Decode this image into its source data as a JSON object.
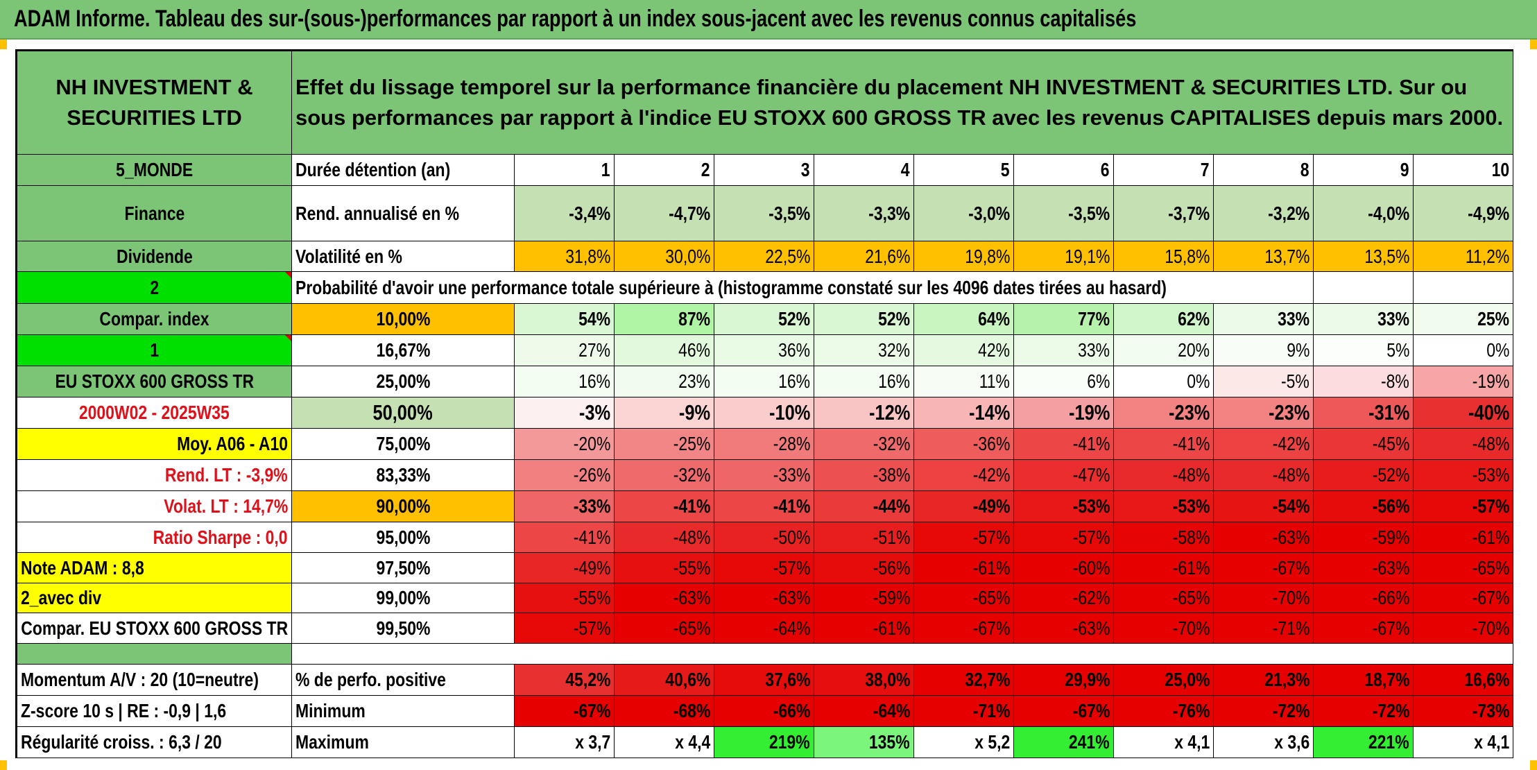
{
  "banner_title": "ADAM Informe. Tableau des sur-(sous-)performances par rapport à un index sous-jacent avec les revenus connus capitalisés",
  "header": {
    "company": "NH INVESTMENT & SECURITIES LTD",
    "description": "Effet du lissage temporel sur la performance financière du placement NH INVESTMENT & SECURITIES LTD. Sur ou sous performances par rapport à l'indice EU STOXX 600 GROSS TR avec les revenus CAPITALISES depuis mars 2000."
  },
  "left_labels": {
    "zone": "5_MONDE",
    "sector": "Finance",
    "type": "Dividende",
    "value_2": "2",
    "compar_index": "Compar. index",
    "value_1": "1",
    "index_name": "EU STOXX 600 GROSS TR",
    "period": "2000W02 - 2025W35",
    "moy": "Moy. A06 - A10",
    "rend_lt": "Rend. LT :   -3,9%",
    "volat_lt": "Volat. LT :   14,7%",
    "ratio_sharpe": "Ratio Sharpe :    0,0",
    "note_adam": "Note ADAM : 8,8",
    "avec_div": "2_avec div",
    "compar_full": "Compar. EU STOXX 600 GROSS TR",
    "momentum": "Momentum A/V : 20 (10=neutre)",
    "zscore": "Z-score 10 s | RE : -0,9 | 1,6",
    "regularite": "Régularité croiss. : 6,3 / 20"
  },
  "row_labels": {
    "duree": "Durée détention (an)",
    "rend": "Rend. annualisé en %",
    "volat": "Volatilité en %",
    "proba": "Probabilité d'avoir une performance totale supérieure à (histogramme constaté sur les 4096 dates tirées au hasard)",
    "pct_pos": "% de perfo. positive",
    "minimum": "Minimum",
    "maximum": "Maximum"
  },
  "years": [
    "1",
    "2",
    "3",
    "4",
    "5",
    "6",
    "7",
    "8",
    "9",
    "10"
  ],
  "rend": [
    "-3,4%",
    "-4,7%",
    "-3,5%",
    "-3,3%",
    "-3,0%",
    "-3,5%",
    "-3,7%",
    "-3,2%",
    "-4,0%",
    "-4,9%"
  ],
  "volat": [
    "31,8%",
    "30,0%",
    "22,5%",
    "21,6%",
    "19,8%",
    "19,1%",
    "15,8%",
    "13,7%",
    "13,5%",
    "11,2%"
  ],
  "percentiles": [
    {
      "label": "10,00%",
      "values": [
        "54%",
        "87%",
        "52%",
        "52%",
        "64%",
        "77%",
        "62%",
        "33%",
        "33%",
        "25%"
      ],
      "colors": [
        "#d9f7d3",
        "#b0f5a6",
        "#d9f7d3",
        "#d9f7d3",
        "#c8f5c0",
        "#b7f2ad",
        "#d2f6cb",
        "#ecfbe9",
        "#ecfbe9",
        "#f1fcef"
      ]
    },
    {
      "label": "16,67%",
      "values": [
        "27%",
        "46%",
        "36%",
        "32%",
        "42%",
        "33%",
        "20%",
        "9%",
        "5%",
        "0%"
      ],
      "colors": [
        "#eefbeb",
        "#e2f9dd",
        "#e9faE5",
        "#ebfbe8",
        "#e4f9e0",
        "#ebfbe8",
        "#f2fcf0",
        "#f8fef7",
        "#fbfefa",
        "#ffffff"
      ]
    },
    {
      "label": "25,00%",
      "values": [
        "16%",
        "23%",
        "16%",
        "16%",
        "11%",
        "6%",
        "0%",
        "-5%",
        "-8%",
        "-19%"
      ],
      "colors": [
        "#f4fdf2",
        "#f0fcee",
        "#f4fdf2",
        "#f4fdf2",
        "#f7fdf5",
        "#fafef9",
        "#ffffff",
        "#fde8e8",
        "#fcdcdc",
        "#f7a6a6"
      ]
    },
    {
      "label": "50,00%",
      "values": [
        "-3%",
        "-9%",
        "-10%",
        "-12%",
        "-14%",
        "-19%",
        "-23%",
        "-23%",
        "-31%",
        "-40%"
      ],
      "colors": [
        "#fdf0f0",
        "#fbd4d4",
        "#facdcd",
        "#f9c4c4",
        "#f7b5b5",
        "#f5a0a0",
        "#f38383",
        "#f38383",
        "#ee5858",
        "#e93030"
      ]
    },
    {
      "label": "75,00%",
      "values": [
        "-20%",
        "-25%",
        "-28%",
        "-32%",
        "-36%",
        "-41%",
        "-41%",
        "-42%",
        "-45%",
        "-48%"
      ],
      "colors": [
        "#f49999",
        "#f28585",
        "#f17b7b",
        "#ef6a6a",
        "#ee5c5c",
        "#ec4646",
        "#ec4646",
        "#ec4242",
        "#ea3636",
        "#e92a2a"
      ]
    },
    {
      "label": "83,33%",
      "values": [
        "-26%",
        "-32%",
        "-33%",
        "-38%",
        "-42%",
        "-47%",
        "-48%",
        "-48%",
        "-52%",
        "-53%"
      ],
      "colors": [
        "#f28080",
        "#ef6a6a",
        "#ef6666",
        "#ed5050",
        "#ec4242",
        "#ea2e2e",
        "#e92a2a",
        "#e92a2a",
        "#e81c1c",
        "#e81818"
      ]
    },
    {
      "label": "90,00%",
      "values": [
        "-33%",
        "-41%",
        "-41%",
        "-44%",
        "-49%",
        "-53%",
        "-53%",
        "-54%",
        "-56%",
        "-57%"
      ],
      "colors": [
        "#ef6666",
        "#ec4646",
        "#ec4646",
        "#eb3a3a",
        "#e92626",
        "#e81818",
        "#e81818",
        "#e71414",
        "#e70c0c",
        "#e70808"
      ]
    },
    {
      "label": "95,00%",
      "values": [
        "-41%",
        "-48%",
        "-50%",
        "-51%",
        "-57%",
        "-57%",
        "-58%",
        "-63%",
        "-59%",
        "-61%"
      ],
      "colors": [
        "#ec4646",
        "#e92a2a",
        "#e82222",
        "#e81e1e",
        "#e70808",
        "#e70808",
        "#e60404",
        "#e60000",
        "#e60000",
        "#e60000"
      ]
    },
    {
      "label": "97,50%",
      "values": [
        "-49%",
        "-55%",
        "-57%",
        "-56%",
        "-61%",
        "-60%",
        "-61%",
        "-67%",
        "-63%",
        "-65%"
      ],
      "colors": [
        "#e92626",
        "#e71010",
        "#e70808",
        "#e70c0c",
        "#e60000",
        "#e60000",
        "#e60000",
        "#e60000",
        "#e60000",
        "#e60000"
      ]
    },
    {
      "label": "99,00%",
      "values": [
        "-55%",
        "-63%",
        "-63%",
        "-59%",
        "-65%",
        "-62%",
        "-65%",
        "-70%",
        "-66%",
        "-67%"
      ],
      "colors": [
        "#e71010",
        "#e60000",
        "#e60000",
        "#e60000",
        "#e60000",
        "#e60000",
        "#e60000",
        "#e60000",
        "#e60000",
        "#e60000"
      ]
    },
    {
      "label": "99,50%",
      "values": [
        "-57%",
        "-65%",
        "-64%",
        "-61%",
        "-67%",
        "-63%",
        "-70%",
        "-71%",
        "-67%",
        "-70%"
      ],
      "colors": [
        "#e70808",
        "#e60000",
        "#e60000",
        "#e60000",
        "#e60000",
        "#e60000",
        "#e60000",
        "#e60000",
        "#e60000",
        "#e60000"
      ]
    }
  ],
  "pct_pos": [
    "45,2%",
    "40,6%",
    "37,6%",
    "38,0%",
    "32,7%",
    "29,9%",
    "25,0%",
    "21,3%",
    "18,7%",
    "16,6%"
  ],
  "pct_pos_colors": [
    "#e93030",
    "#e71a1a",
    "#e60c0c",
    "#e60e0e",
    "#e60000",
    "#e60000",
    "#e60000",
    "#e60000",
    "#e60000",
    "#e60000"
  ],
  "minimum": [
    "-67%",
    "-68%",
    "-66%",
    "-64%",
    "-71%",
    "-67%",
    "-76%",
    "-72%",
    "-72%",
    "-73%"
  ],
  "maximum": [
    "x 3,7",
    "x 4,4",
    "219%",
    "135%",
    "x 5,2",
    "241%",
    "x 4,1",
    "x 3,6",
    "221%",
    "x 4,1"
  ],
  "maximum_colors": [
    "#ffffff",
    "#ffffff",
    "#33ee33",
    "#7cf57c",
    "#ffffff",
    "#33ee33",
    "#ffffff",
    "#ffffff",
    "#33ee33",
    "#ffffff"
  ],
  "colors": {
    "header_green": "#7cc576",
    "light_green": "#c5e0b3",
    "bright_green": "#00e000",
    "yellow": "#ffff00",
    "orange": "#ffc000",
    "red": "#e60000",
    "red_text": "#e0101a"
  }
}
